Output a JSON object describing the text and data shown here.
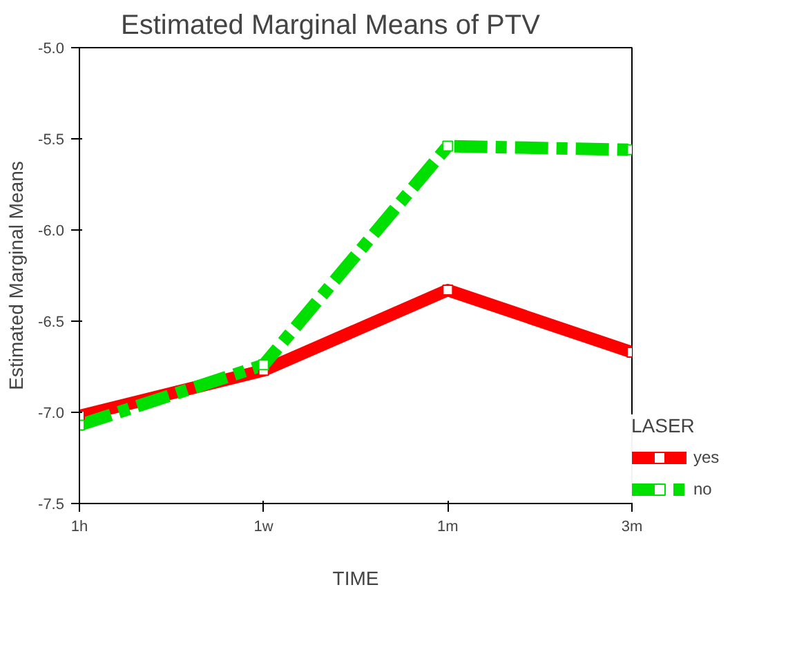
{
  "chart_data": {
    "type": "line",
    "title": "Estimated Marginal Means of PTV",
    "xlabel": "TIME",
    "ylabel": "Estimated Marginal Means",
    "legend_title": "LASER",
    "categories": [
      "1h",
      "1w",
      "1m",
      "3m"
    ],
    "series": [
      {
        "name": "yes",
        "color": "#ff0000",
        "values": [
          -7.02,
          -6.77,
          -6.33,
          -6.67
        ],
        "line_style": "solid"
      },
      {
        "name": "no",
        "color": "#00e000",
        "values": [
          -7.07,
          -6.74,
          -5.54,
          -5.56
        ],
        "line_style": "dashed"
      }
    ],
    "ylim": [
      -7.5,
      -5.0
    ],
    "yticks": [
      {
        "value": -7.5,
        "label": "-7.5"
      },
      {
        "value": -7.0,
        "label": "-7.0"
      },
      {
        "value": -6.5,
        "label": "-6.5"
      },
      {
        "value": -6.0,
        "label": "-6.0"
      },
      {
        "value": -5.5,
        "label": "-5.5"
      },
      {
        "value": -5.0,
        "label": "-5.0"
      }
    ],
    "marker": "square",
    "grid": false,
    "legend": "right"
  }
}
